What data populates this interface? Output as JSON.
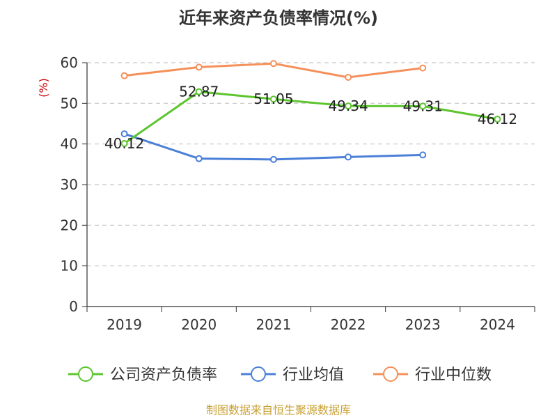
{
  "chart_data": {
    "type": "line",
    "title": "近年来资产负债率情况(%)",
    "ylabel": "(%)",
    "ylim": [
      0,
      60
    ],
    "yticks": [
      0,
      10,
      20,
      30,
      40,
      50,
      60
    ],
    "grid": true,
    "legend_position": "bottom",
    "categories": [
      "2019",
      "2020",
      "2021",
      "2022",
      "2023",
      "2024"
    ],
    "series": [
      {
        "name": "公司资产负债率",
        "color": "#5cc52f",
        "values": [
          40.12,
          52.87,
          51.05,
          49.34,
          49.31,
          46.12
        ],
        "labels": [
          "40.12",
          "52.87",
          "51.05",
          "49.34",
          "49.31",
          "46.12"
        ]
      },
      {
        "name": "行业均值",
        "color": "#4b7fd8",
        "values": [
          42.5,
          36.4,
          36.2,
          36.8,
          37.3,
          null
        ]
      },
      {
        "name": "行业中位数",
        "color": "#f5905a",
        "values": [
          56.8,
          58.9,
          59.8,
          56.4,
          58.7,
          null
        ]
      }
    ],
    "ylabel_color": "#cc0000"
  },
  "footer": {
    "source": "制图数据来自恒生聚源数据库",
    "color": "#c8a032"
  }
}
